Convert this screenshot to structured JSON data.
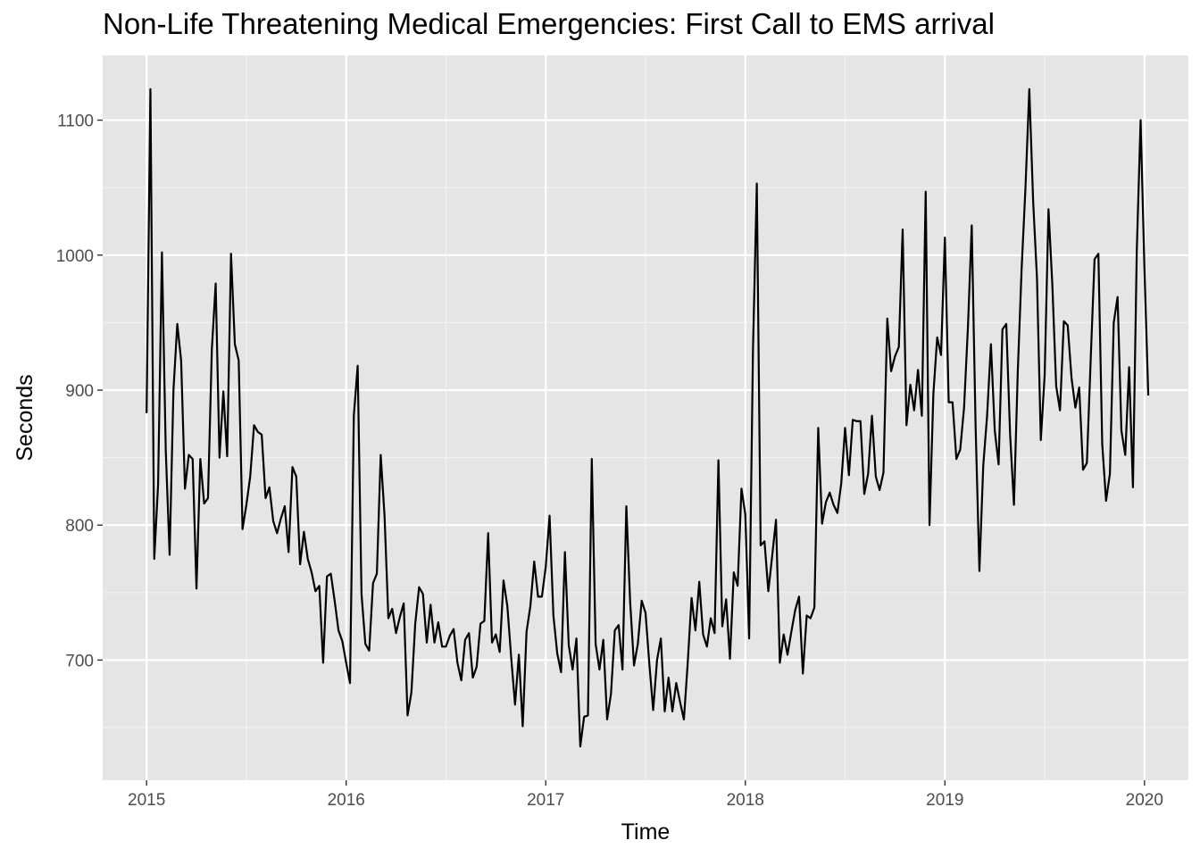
{
  "chart_data": {
    "type": "line",
    "title": "Non-Life Threatening Medical Emergencies: First Call to EMS arrival",
    "xlabel": "Time",
    "ylabel": "Seconds",
    "xlim": [
      2014.78,
      2020.22
    ],
    "ylim": [
      611,
      1148
    ],
    "x_ticks": [
      2015,
      2016,
      2017,
      2018,
      2019,
      2020
    ],
    "y_ticks": [
      700,
      800,
      900,
      1000,
      1100
    ],
    "x_tick_labels": [
      "2015",
      "2016",
      "2017",
      "2018",
      "2019",
      "2020"
    ],
    "y_tick_labels": [
      "700",
      "800",
      "900",
      "1000",
      "1100"
    ],
    "grid": true,
    "legend": "none",
    "line_color": "#000000",
    "panel_background": "#e5e5e5",
    "grid_color": "#ffffff",
    "x_start": 2015.0,
    "x_step": 0.01923,
    "values": [
      883,
      1123,
      775,
      830,
      1002,
      855,
      778,
      900,
      949,
      922,
      827,
      852,
      849,
      753,
      849,
      816,
      820,
      930,
      979,
      850,
      899,
      851,
      1001,
      934,
      922,
      797,
      815,
      836,
      874,
      869,
      867,
      820,
      828,
      803,
      794,
      805,
      814,
      780,
      843,
      836,
      771,
      795,
      775,
      765,
      751,
      755,
      698,
      762,
      764,
      744,
      722,
      714,
      698,
      683,
      881,
      918,
      749,
      712,
      707,
      757,
      764,
      852,
      807,
      731,
      738,
      720,
      732,
      742,
      659,
      676,
      727,
      754,
      749,
      713,
      741,
      713,
      728,
      710,
      710,
      718,
      723,
      698,
      685,
      715,
      720,
      687,
      695,
      727,
      729,
      794,
      713,
      719,
      706,
      759,
      740,
      702,
      667,
      704,
      651,
      721,
      740,
      773,
      747,
      747,
      769,
      807,
      733,
      705,
      691,
      780,
      711,
      693,
      716,
      636,
      658,
      659,
      849,
      712,
      693,
      715,
      656,
      675,
      722,
      726,
      693,
      814,
      743,
      696,
      712,
      744,
      735,
      697,
      663,
      700,
      716,
      662,
      687,
      662,
      683,
      669,
      656,
      698,
      746,
      722,
      758,
      719,
      710,
      731,
      720,
      848,
      725,
      745,
      701,
      765,
      755,
      827,
      808,
      716,
      930,
      1053,
      785,
      788,
      751,
      777,
      804,
      698,
      719,
      704,
      721,
      737,
      747,
      690,
      733,
      731,
      739,
      872,
      801,
      817,
      824,
      815,
      809,
      831,
      872,
      837,
      878,
      877,
      877,
      823,
      838,
      881,
      836,
      826,
      839,
      953,
      914,
      925,
      932,
      1019,
      874,
      904,
      885,
      915,
      881,
      1047,
      800,
      897,
      939,
      926,
      1013,
      891,
      891,
      849,
      856,
      887,
      946,
      1022,
      874,
      766,
      844,
      881,
      934,
      870,
      845,
      945,
      949,
      867,
      815,
      914,
      990,
      1050,
      1123,
      1040,
      983,
      863,
      911,
      1034,
      978,
      903,
      885,
      951,
      948,
      909,
      887,
      902,
      841,
      846,
      923,
      997,
      1001,
      860,
      818,
      838,
      950,
      969,
      870,
      852,
      917,
      828,
      1003,
      1100,
      990,
      896
    ]
  }
}
